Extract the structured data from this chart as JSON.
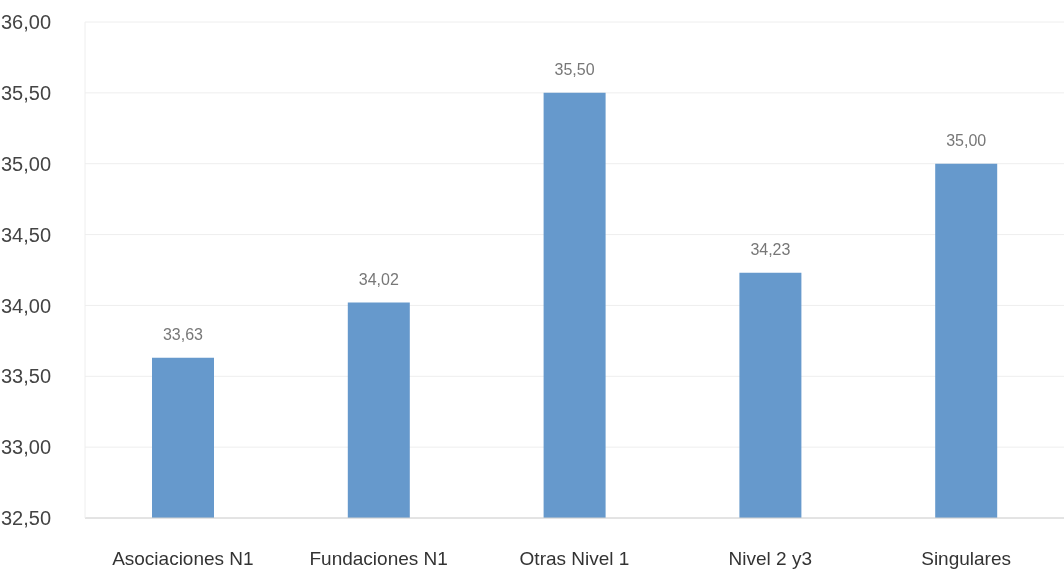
{
  "chart_data": {
    "type": "bar",
    "categories": [
      "Asociaciones N1",
      "Fundaciones N1",
      "Otras Nivel 1",
      "Nivel 2 y3",
      "Singulares"
    ],
    "values": [
      33.63,
      34.02,
      35.5,
      34.23,
      35.0
    ],
    "value_labels": [
      "33,63",
      "34,02",
      "35,50",
      "34,23",
      "35,00"
    ],
    "color": "#6699cc",
    "ylim": [
      32.5,
      36
    ],
    "yticks": [
      {
        "value": 32.5,
        "label": "32,50"
      },
      {
        "value": 33,
        "label": "33,00"
      },
      {
        "value": 33.5,
        "label": "33,50"
      },
      {
        "value": 34,
        "label": "34,00"
      },
      {
        "value": 34.5,
        "label": "34,50"
      },
      {
        "value": 35,
        "label": "35,00"
      },
      {
        "value": 35.5,
        "label": "35,50"
      },
      {
        "value": 36,
        "label": "36,00"
      }
    ],
    "grid": "y"
  }
}
